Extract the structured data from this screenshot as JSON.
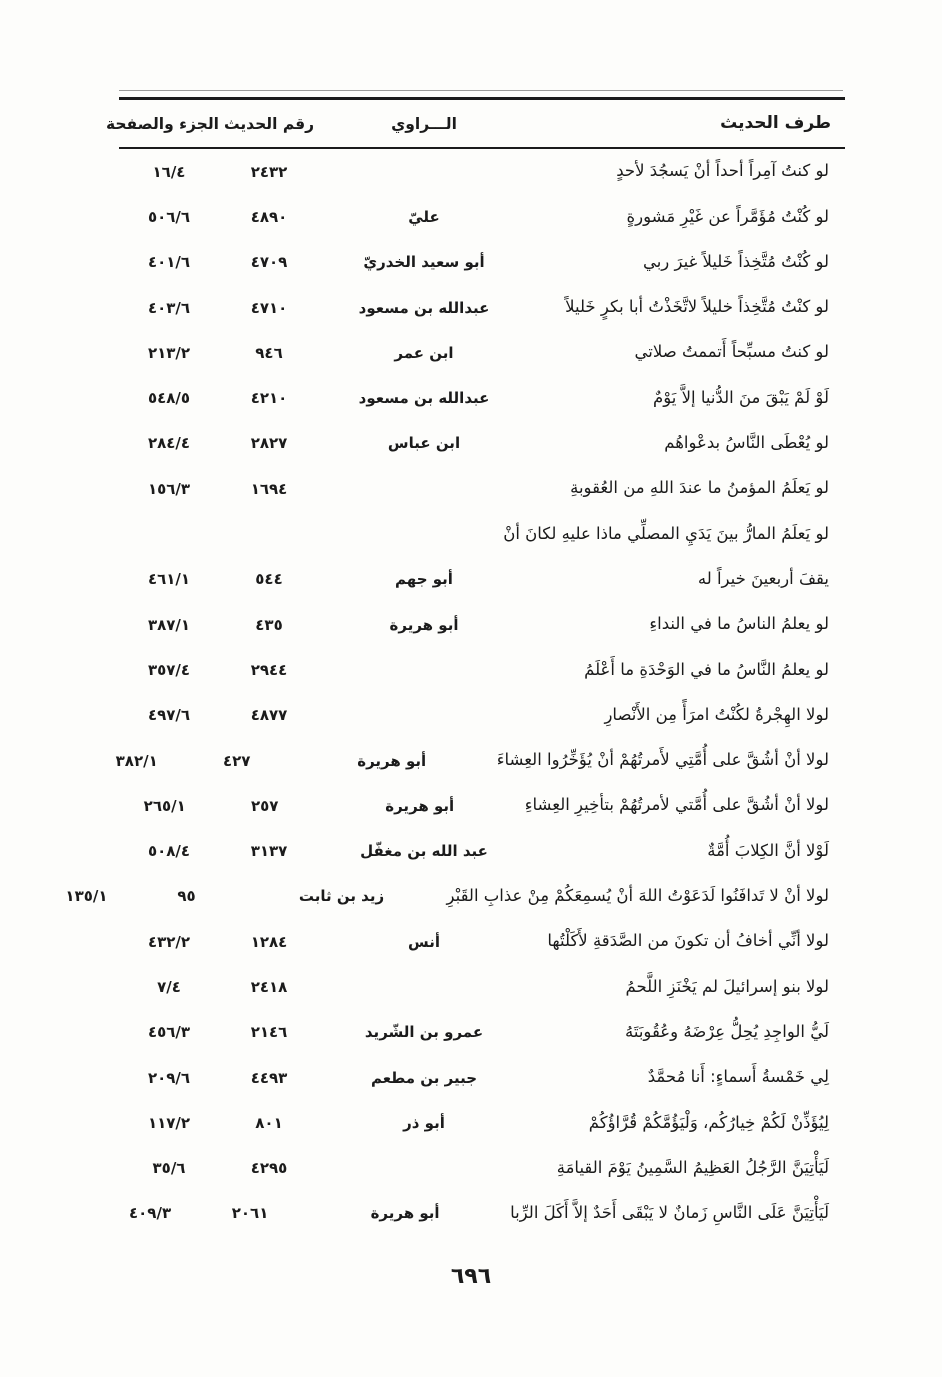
{
  "header": {
    "col_hadith": "طرف الحديث",
    "col_narrator": "الـــراوي",
    "col_number": "رقم الحديث",
    "col_volpage": "الجزء والصفحة"
  },
  "rows": [
    {
      "text": "لو كنتُ آمِراً أحداً أنْ يَسجُدَ لأحدٍ",
      "narrator": "",
      "number": "٢٤٣٢",
      "volpage": "١٦/٤"
    },
    {
      "text": "لو كُنْتُ مُؤَمَّراً عن غَيْرِ مَشورةٍ",
      "narrator": "عليّ",
      "number": "٤٨٩٠",
      "volpage": "٥٠٦/٦"
    },
    {
      "text": "لو كُنْتُ مُتَّخِذاً خَليلاً غيرَ ربي",
      "narrator": "أبو سعيد الخدريّ",
      "number": "٤٧٠٩",
      "volpage": "٤٠١/٦"
    },
    {
      "text": "لو كنْتُ مُتَّخِذاً خليلاً لاتَّخَذْتُ أبا بكرٍ خَليلاً",
      "narrator": "عبدالله بن مسعود",
      "number": "٤٧١٠",
      "volpage": "٤٠٣/٦"
    },
    {
      "text": "لو كنتُ مسبِّحاً أَتممتُ صلاتي",
      "narrator": "ابن عمر",
      "number": "٩٤٦",
      "volpage": "٢١٣/٢"
    },
    {
      "text": "لَوْ لَمْ يَبْقَ منَ الدُّنيا إلاَّ يَوْمٌ",
      "narrator": "عبدالله بن مسعود",
      "number": "٤٢١٠",
      "volpage": "٥٤٨/٥"
    },
    {
      "text": "لو يُعْطَى النَّاسُ بدعْواهُم",
      "narrator": "ابن عباس",
      "number": "٢٨٢٧",
      "volpage": "٢٨٤/٤"
    },
    {
      "text": "لو يَعلَمُ المؤمنُ ما عندَ اللهِ من العُقوبةِ",
      "narrator": "",
      "number": "١٦٩٤",
      "volpage": "١٥٦/٣"
    },
    {
      "text": "لو يَعلَمُ المارُّ بينَ يَدَيِ المصلِّي ماذا عليهِ لكانَ أنْ",
      "narrator": "",
      "number": "",
      "volpage": ""
    },
    {
      "text": "يقفَ أربعينَ خيراً له",
      "narrator": "أبو جهم",
      "number": "٥٤٤",
      "volpage": "٤٦١/١"
    },
    {
      "text": "لو يعلمُ الناسُ ما في النداءِ",
      "narrator": "أبو هريرة",
      "number": "٤٣٥",
      "volpage": "٣٨٧/١"
    },
    {
      "text": "لو يعلمُ النَّاسُ ما في الوَحْدَةِ ما أَعْلَمُ",
      "narrator": "",
      "number": "٢٩٤٤",
      "volpage": "٣٥٧/٤"
    },
    {
      "text": "لولا الهِجْرةُ لكُنْتُ امرَأً مِن الأَنْصارِ",
      "narrator": "",
      "number": "٤٨٧٧",
      "volpage": "٤٩٧/٦"
    },
    {
      "text": "لولا أنْ أشُقَّ على أُمَّتِي لأَمرتُهُمْ أنْ يُؤَخِّرُوا العِشاءَ",
      "narrator": "أبو هريرة",
      "number": "٤٢٧",
      "volpage": "٣٨٢/١"
    },
    {
      "text": "لولا أنْ أشُقَّ على أُمَّتي لأمرتُهُمْ بتأخِيرِ العِشاءِ",
      "narrator": "أبو هريرة",
      "number": "٢٥٧",
      "volpage": "٢٦٥/١"
    },
    {
      "text": "لَوْلا أنَّ الكِلابَ أُمَّةٌ",
      "narrator": "عبد الله بن مغفّل",
      "number": "٣١٣٧",
      "volpage": "٥٠٨/٤"
    },
    {
      "text": "لولا أنْ لا تَدافَنُوا لَدَعَوْتُ اللهَ أنْ يُسمِعَكُمْ مِنْ عذابِ القَبْرِ",
      "narrator": "زيد بن ثابت",
      "number": "٩٥",
      "volpage": "١٣٥/١"
    },
    {
      "text": "لولا أنِّي أخافُ أن تكونَ من الصَّدَقةِ لأَكَلْتُها",
      "narrator": "أنس",
      "number": "١٢٨٤",
      "volpage": "٤٣٢/٢"
    },
    {
      "text": "لولا بنو إسرائيلَ لم يَخْنَزِ اللَّحمُ",
      "narrator": "",
      "number": "٢٤١٨",
      "volpage": "٧/٤"
    },
    {
      "text": "لَيُّ الواجِدِ يُحِلُّ عِرْضَهُ وعُقُوبَتَهُ",
      "narrator": "عمرو بن الشّريد",
      "number": "٢١٤٦",
      "volpage": "٤٥٦/٣"
    },
    {
      "text": "لِي خَمْسةُ أَسماءٍ: أَنا مُحمَّدٌ",
      "narrator": "جبير بن مطعم",
      "number": "٤٤٩٣",
      "volpage": "٢٠٩/٦"
    },
    {
      "text": "لِيُؤَذِّنْ لَكُمْ خِيارُكُم، وَلْيَؤُمَّكُمْ قُرَّاؤُكُمْ",
      "narrator": "أبو ذر",
      "number": "٨٠١",
      "volpage": "١١٧/٢"
    },
    {
      "text": "لَيَأْتِيَنَّ الرَّجُلُ العَظِيمُ السَّمِينُ يَوْمَ القيامَةِ",
      "narrator": "",
      "number": "٤٢٩٥",
      "volpage": "٣٥/٦"
    },
    {
      "text": "لَيَأْتِيَنَّ عَلَى النَّاسِ زَمانٌ لا يَبْقَى أَحَدٌ إلاَّ أَكَلَ الرِّبا",
      "narrator": "أبو هريرة",
      "number": "٢٠٦١",
      "volpage": "٤٠٩/٣"
    }
  ],
  "page_number": "٦٩٦"
}
